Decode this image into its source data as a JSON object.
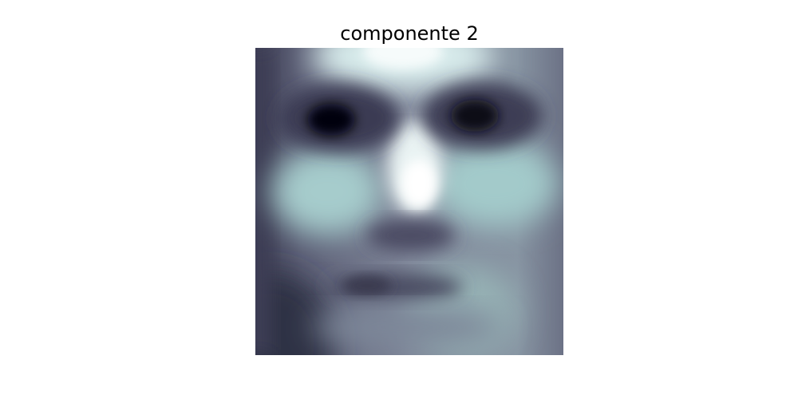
{
  "figure": {
    "title": "componente 2",
    "colormap": "bone",
    "colors": {
      "background": "#ffffff",
      "darkest": "#000000",
      "dark": "#4a4a60",
      "mid": "#6f7388",
      "light": "#a9cfcf",
      "lightest": "#ffffff"
    }
  }
}
